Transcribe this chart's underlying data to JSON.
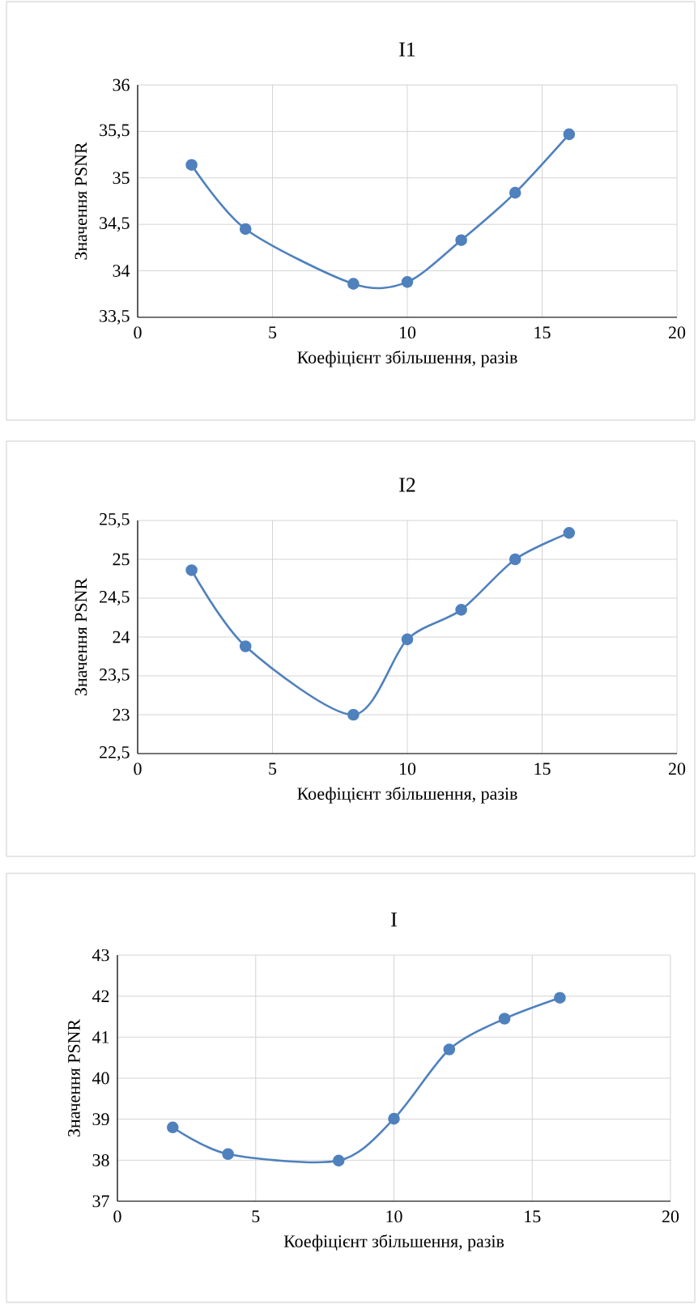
{
  "chart_data": [
    {
      "type": "line",
      "title": "I1",
      "xlabel": "Коефіцієнт збільшення, разів",
      "ylabel": "Значення PSNR",
      "x": [
        2,
        4,
        8,
        10,
        12,
        14,
        16
      ],
      "values": [
        35.14,
        34.45,
        33.86,
        33.88,
        34.33,
        34.84,
        35.47
      ],
      "color": "#4f81bd",
      "marker": "circle",
      "grid": true,
      "xlim": [
        0,
        20
      ],
      "xticks": [
        0,
        5,
        10,
        15,
        20
      ],
      "ylim": [
        33.5,
        36
      ],
      "yticks": [
        {
          "value": 33.5,
          "label": "33,5"
        },
        34,
        {
          "value": 34.5,
          "label": "34,5"
        },
        35,
        {
          "value": 35.5,
          "label": "35,5"
        },
        36
      ]
    },
    {
      "type": "line",
      "title": "I2",
      "xlabel": "Коефіцієнт збільшення, разів",
      "ylabel": "Значення PSNR",
      "x": [
        2,
        4,
        8,
        10,
        12,
        14,
        16
      ],
      "values": [
        24.86,
        23.88,
        23.0,
        23.97,
        24.35,
        25.0,
        25.34
      ],
      "color": "#4f81bd",
      "marker": "circle",
      "grid": true,
      "xlim": [
        0,
        20
      ],
      "xticks": [
        0,
        5,
        10,
        15,
        20
      ],
      "ylim": [
        22.5,
        25.5
      ],
      "yticks": [
        {
          "value": 22.5,
          "label": "22,5"
        },
        23,
        {
          "value": 23.5,
          "label": "23,5"
        },
        24,
        {
          "value": 24.5,
          "label": "24,5"
        },
        25,
        {
          "value": 25.5,
          "label": "25,5"
        }
      ]
    },
    {
      "type": "line",
      "title": "I",
      "xlabel": "Коефіцієнт збільшення, разів",
      "ylabel": "Значення PSNR",
      "x": [
        2,
        4,
        8,
        10,
        12,
        14,
        16
      ],
      "values": [
        38.8,
        38.15,
        37.99,
        39.01,
        40.7,
        41.45,
        41.96
      ],
      "color": "#4f81bd",
      "marker": "circle",
      "grid": true,
      "xlim": [
        0,
        20
      ],
      "xticks": [
        0,
        5,
        10,
        15,
        20
      ],
      "ylim": [
        37,
        43
      ],
      "yticks": [
        37,
        38,
        39,
        40,
        41,
        42,
        43
      ]
    }
  ]
}
